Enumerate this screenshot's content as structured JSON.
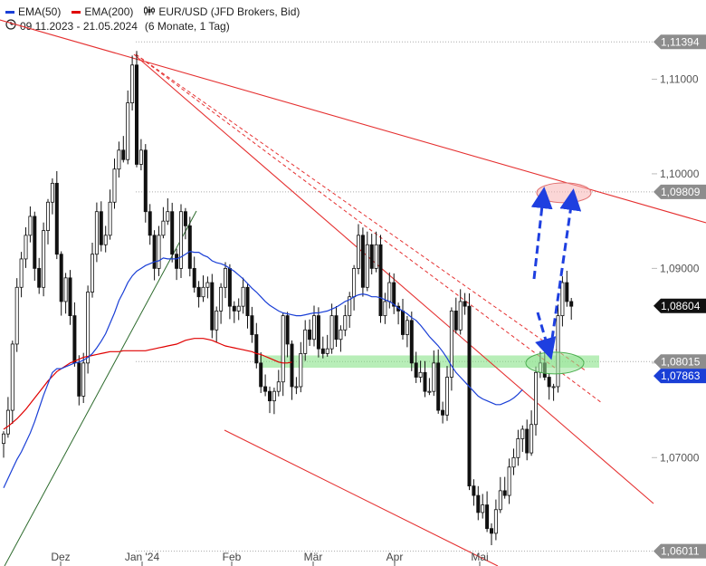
{
  "legend": {
    "ema50_label": "EMA(50)",
    "ema50_color": "#1a3fd6",
    "ema200_label": "EMA(200)",
    "ema200_color": "#e00000",
    "instrument": "EUR/USD (JFD Brokers, Bid)",
    "period": "09.11.2023 - 21.05.2024",
    "period_note": "(6 Monate, 1 Tag)"
  },
  "chart_data": {
    "type": "candlestick",
    "title": "EUR/USD (JFD Brokers, Bid)",
    "xlabel": "",
    "ylabel": "",
    "x_ticks": [
      "Dez",
      "Jan '24",
      "Feb",
      "Mär",
      "Apr",
      "Mai"
    ],
    "y_ticks": [
      "1,07000",
      "1,08000",
      "1,09000",
      "1,10000",
      "1,11000"
    ],
    "ylim": [
      1.0595,
      1.1155
    ],
    "price_markers": [
      {
        "label": "1,11394",
        "style": "gray"
      },
      {
        "label": "1,09809",
        "style": "gray"
      },
      {
        "label": "1,08604",
        "style": "black"
      },
      {
        "label": "1,08015",
        "style": "gray"
      },
      {
        "label": "1,07863",
        "style": "blue"
      },
      {
        "label": "1,06011",
        "style": "gray"
      }
    ],
    "series": [
      {
        "name": "EMA(50)",
        "color": "#1a3fd6"
      },
      {
        "name": "EMA(200)",
        "color": "#e00000"
      }
    ],
    "closes": [
      1.0725,
      1.075,
      1.082,
      1.088,
      1.091,
      1.0935,
      1.0955,
      1.09,
      1.088,
      1.094,
      1.097,
      1.099,
      1.0915,
      1.0865,
      1.089,
      1.085,
      1.08,
      1.0765,
      1.08,
      1.0875,
      1.0915,
      1.096,
      1.0925,
      1.0935,
      1.097,
      1.1005,
      1.1025,
      1.1015,
      1.1075,
      1.1115,
      1.101,
      1.1025,
      1.096,
      1.0935,
      1.09,
      1.0935,
      1.095,
      1.096,
      1.0915,
      1.09,
      1.096,
      1.0945,
      1.09,
      1.088,
      1.087,
      1.088,
      1.0885,
      1.0835,
      1.0855,
      1.088,
      1.09,
      1.086,
      1.0855,
      1.086,
      1.088,
      1.085,
      1.083,
      1.08,
      1.0775,
      1.077,
      1.076,
      1.077,
      1.078,
      1.085,
      1.082,
      1.0775,
      1.0775,
      1.081,
      1.0835,
      1.0825,
      1.085,
      1.0815,
      1.081,
      1.0815,
      1.085,
      1.0825,
      1.0835,
      1.085,
      1.087,
      1.09,
      1.0935,
      1.088,
      1.0925,
      1.09,
      1.0925,
      1.085,
      1.0865,
      1.0885,
      1.086,
      1.0855,
      1.083,
      1.0845,
      1.08,
      1.0785,
      1.079,
      1.077,
      1.077,
      1.08,
      1.075,
      1.0745,
      1.0785,
      1.0855,
      1.0835,
      1.0865,
      1.086,
      1.067,
      1.066,
      1.0642,
      1.065,
      1.0625,
      1.062,
      1.0645,
      1.0665,
      1.066,
      1.069,
      1.07,
      1.072,
      1.073,
      1.0705,
      1.0735,
      1.079,
      1.08,
      1.0785,
      1.0775,
      1.0775,
      1.085,
      1.0885,
      1.0865,
      1.086
    ],
    "ema50": [
      1.0668,
      1.0678,
      1.0688,
      1.0698,
      1.0706,
      1.0716,
      1.0726,
      1.0738,
      1.0752,
      1.0766,
      1.0778,
      1.079,
      1.0794,
      1.0794,
      1.0796,
      1.0798,
      1.08,
      1.0801,
      1.0803,
      1.0806,
      1.081,
      1.0816,
      1.0823,
      1.0831,
      1.0842,
      1.0853,
      1.0866,
      1.0875,
      1.0885,
      1.0892,
      1.0897,
      1.09,
      1.0903,
      1.0905,
      1.0907,
      1.0908,
      1.0911,
      1.091,
      1.091,
      1.091,
      1.0912,
      1.0915,
      1.0918,
      1.0917,
      1.0917,
      1.0914,
      1.0912,
      1.0908,
      1.0906,
      1.0905,
      1.0903,
      1.09,
      1.0897,
      1.0893,
      1.0889,
      1.0884,
      1.0879,
      1.0875,
      1.087,
      1.0865,
      1.0861,
      1.0858,
      1.0855,
      1.0853,
      1.0852,
      1.0851,
      1.085,
      1.085,
      1.0851,
      1.0852,
      1.0853,
      1.0853,
      1.0854,
      1.0855,
      1.0857,
      1.0859,
      1.0862,
      1.0865,
      1.0867,
      1.087,
      1.0872,
      1.0873,
      1.0872,
      1.087,
      1.087,
      1.0869,
      1.0867,
      1.0865,
      1.0862,
      1.0858,
      1.0855,
      1.0852,
      1.0848,
      1.0845,
      1.084,
      1.0834,
      1.0828,
      1.0823,
      1.0818,
      1.0812,
      1.0805,
      1.0797,
      1.079,
      1.0785,
      1.078,
      1.0775,
      1.077,
      1.0765,
      1.0762,
      1.076,
      1.0758,
      1.0756,
      1.0756,
      1.0758,
      1.076,
      1.0763,
      1.0767,
      1.0772
    ],
    "ema200": [
      1.073,
      1.0733,
      1.0737,
      1.0741,
      1.0746,
      1.0751,
      1.0757,
      1.0763,
      1.0769,
      1.0775,
      1.0781,
      1.0786,
      1.0791,
      1.0794,
      1.0797,
      1.08,
      1.0802,
      1.0804,
      1.0806,
      1.0807,
      1.0808,
      1.0809,
      1.081,
      1.0811,
      1.0812,
      1.0812,
      1.0812,
      1.0813,
      1.0813,
      1.0813,
      1.0813,
      1.0813,
      1.0813,
      1.0814,
      1.0815,
      1.0816,
      1.0817,
      1.0818,
      1.0819,
      1.082,
      1.0822,
      1.0824,
      1.0825,
      1.0826,
      1.0826,
      1.0826,
      1.0825,
      1.0824,
      1.0822,
      1.082,
      1.0818,
      1.0817,
      1.0816,
      1.0815,
      1.0814,
      1.0813,
      1.0812,
      1.081,
      1.0809,
      1.0807,
      1.0805,
      1.0803,
      1.0801,
      1.08,
      1.08,
      1.0801
    ]
  }
}
